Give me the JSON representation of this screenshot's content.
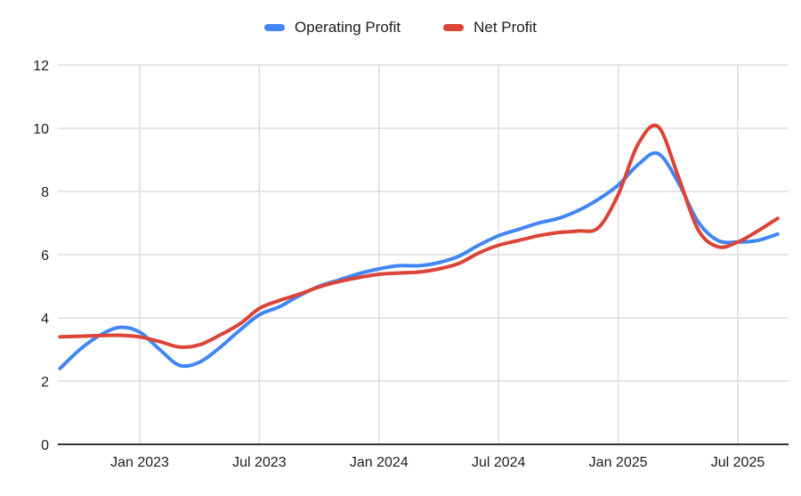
{
  "chart_data": {
    "type": "line",
    "smooth": true,
    "title": "",
    "xlabel": "",
    "ylabel": "",
    "x": [
      "Sep 2022",
      "Oct 2022",
      "Nov 2022",
      "Dec 2022",
      "Jan 2023",
      "Feb 2023",
      "Mar 2023",
      "Apr 2023",
      "May 2023",
      "Jun 2023",
      "Jul 2023",
      "Aug 2023",
      "Sep 2023",
      "Oct 2023",
      "Nov 2023",
      "Dec 2023",
      "Jan 2024",
      "Feb 2024",
      "Mar 2024",
      "Apr 2024",
      "May 2024",
      "Jun 2024",
      "Jul 2024",
      "Aug 2024",
      "Sep 2024",
      "Oct 2024",
      "Nov 2024",
      "Dec 2024",
      "Jan 2025",
      "Feb 2025",
      "Mar 2025",
      "Apr 2025",
      "May 2025",
      "Jun 2025",
      "Jul 2025",
      "Aug 2025",
      "Sep 2025"
    ],
    "series": [
      {
        "name": "Operating Profit",
        "color": "#4285f4",
        "values": [
          2.4,
          3.0,
          3.45,
          3.7,
          3.55,
          3.0,
          2.5,
          2.6,
          3.05,
          3.6,
          4.1,
          4.35,
          4.7,
          5.0,
          5.2,
          5.4,
          5.55,
          5.65,
          5.65,
          5.75,
          5.95,
          6.3,
          6.6,
          6.8,
          7.0,
          7.15,
          7.4,
          7.75,
          8.2,
          8.85,
          9.2,
          8.3,
          7.05,
          6.45,
          6.4,
          6.45,
          6.65
        ]
      },
      {
        "name": "Net Profit",
        "color": "#db4437",
        "values": [
          3.4,
          3.42,
          3.44,
          3.45,
          3.4,
          3.25,
          3.08,
          3.15,
          3.45,
          3.8,
          4.3,
          4.55,
          4.75,
          4.98,
          5.15,
          5.28,
          5.38,
          5.42,
          5.45,
          5.55,
          5.72,
          6.05,
          6.3,
          6.45,
          6.6,
          6.7,
          6.75,
          6.85,
          7.9,
          9.5,
          10.05,
          8.5,
          6.8,
          6.25,
          6.4,
          6.75,
          7.15
        ]
      }
    ],
    "xtick_labels": [
      "Jan 2023",
      "Jul 2023",
      "Jan 2024",
      "Jul 2024",
      "Jan 2025",
      "Jul 2025"
    ],
    "xtick_indices": [
      4,
      10,
      16,
      22,
      28,
      34
    ],
    "yticks": [
      0,
      2,
      4,
      6,
      8,
      10,
      12
    ],
    "ylim": [
      0,
      12
    ],
    "grid": true,
    "legend_position": "top"
  },
  "style": {
    "background": "#ffffff",
    "grid_color": "#e2e2e2",
    "axis_color": "#333333",
    "text_color": "#1d1d1d",
    "series_blue": "#4285f4",
    "series_red": "#db4437"
  }
}
